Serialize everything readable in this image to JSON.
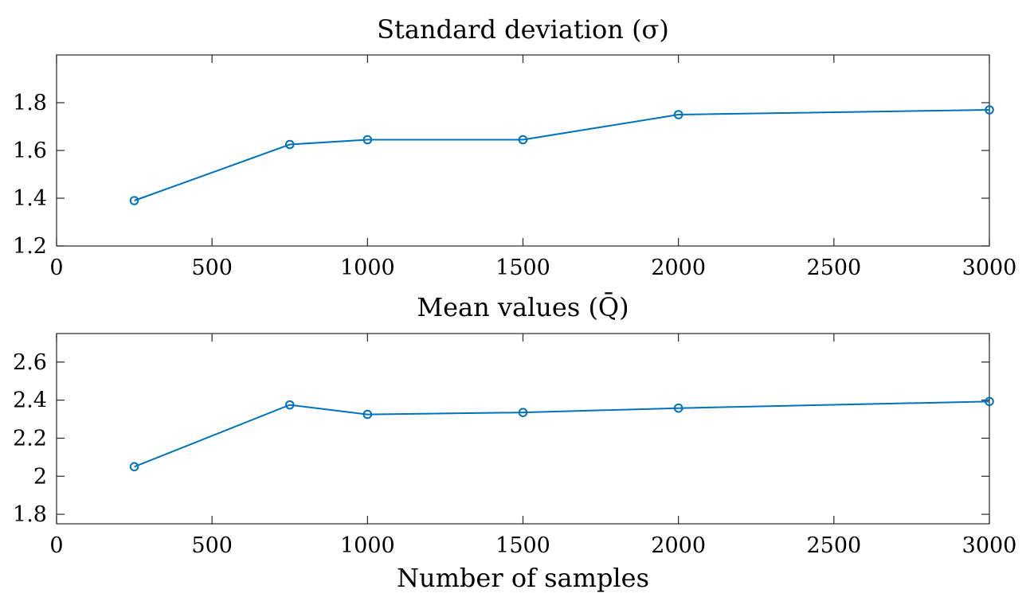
{
  "chart_data": [
    {
      "type": "line",
      "title": "Standard deviation (σ)",
      "xlabel": "",
      "ylabel": "",
      "x": [
        250,
        750,
        1000,
        1500,
        2000,
        3000
      ],
      "series": [
        {
          "name": "Standard deviation",
          "values": [
            1.39,
            1.625,
            1.645,
            1.645,
            1.75,
            1.77
          ],
          "color": "#0072BD",
          "marker": "circle"
        }
      ],
      "xlim": [
        0,
        3000
      ],
      "ylim": [
        1.2,
        2.0
      ],
      "xticks": [
        0,
        500,
        1000,
        1500,
        2000,
        2500,
        3000
      ],
      "xtick_labels": [
        "0",
        "500",
        "1000",
        "1500",
        "2000",
        "2500",
        "3000"
      ],
      "yticks": [
        1.2,
        1.4,
        1.6,
        1.8
      ],
      "ytick_labels": [
        "1.2",
        "1.4",
        "1.6",
        "1.8"
      ],
      "grid": false
    },
    {
      "type": "line",
      "title": "Mean values (Q̄)",
      "xlabel": "Number of samples",
      "ylabel": "",
      "x": [
        250,
        750,
        1000,
        1500,
        2000,
        3000
      ],
      "series": [
        {
          "name": "Mean values",
          "values": [
            2.05,
            2.375,
            2.325,
            2.335,
            2.358,
            2.393
          ],
          "color": "#0072BD",
          "marker": "circle"
        }
      ],
      "xlim": [
        0,
        3000
      ],
      "ylim": [
        1.75,
        2.75
      ],
      "xticks": [
        0,
        500,
        1000,
        1500,
        2000,
        2500,
        3000
      ],
      "xtick_labels": [
        "0",
        "500",
        "1000",
        "1500",
        "2000",
        "2500",
        "3000"
      ],
      "yticks": [
        1.8,
        2.0,
        2.2,
        2.4,
        2.6
      ],
      "ytick_labels": [
        "1.8",
        "2",
        "2.2",
        "2.4",
        "2.6"
      ],
      "grid": false
    }
  ]
}
